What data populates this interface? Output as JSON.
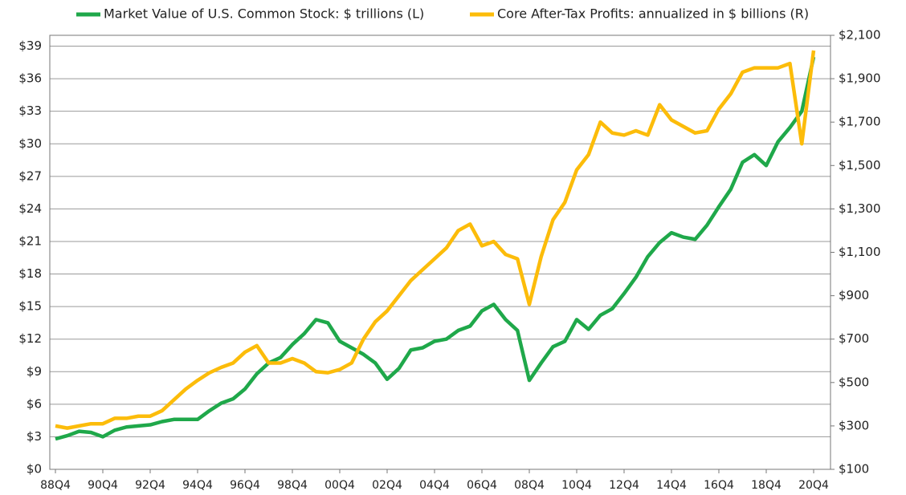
{
  "chart_data": {
    "type": "line",
    "categories": [
      "88Q4",
      null,
      null,
      null,
      "90Q4",
      null,
      null,
      null,
      "92Q4",
      null,
      null,
      null,
      "94Q4",
      null,
      null,
      null,
      "96Q4",
      null,
      null,
      null,
      "98Q4",
      null,
      null,
      null,
      "00Q4",
      null,
      null,
      null,
      "02Q4",
      null,
      null,
      null,
      "04Q4",
      null,
      null,
      null,
      "06Q4",
      null,
      null,
      null,
      "08Q4",
      null,
      null,
      null,
      "10Q4",
      null,
      null,
      null,
      "12Q4",
      null,
      null,
      null,
      "14Q4",
      null,
      null,
      null,
      "16Q4",
      null,
      null,
      null,
      "18Q4",
      null,
      null,
      null,
      "20Q4"
    ],
    "series": [
      {
        "name": "Market Value of U.S. Common Stock: $ trillions (L)",
        "color": "#1fa84a",
        "values": [
          2.8,
          3.1,
          3.5,
          3.4,
          3.0,
          3.6,
          3.9,
          4.0,
          4.1,
          4.4,
          4.6,
          4.6,
          4.6,
          5.4,
          6.1,
          6.5,
          7.4,
          8.8,
          9.8,
          10.3,
          11.5,
          12.5,
          13.8,
          13.5,
          11.8,
          11.2,
          10.6,
          9.8,
          8.3,
          9.3,
          11.0,
          11.2,
          11.8,
          12.0,
          12.8,
          13.2,
          14.6,
          15.2,
          13.8,
          12.8,
          8.2,
          9.8,
          11.3,
          11.8,
          13.8,
          12.9,
          14.2,
          14.8,
          16.2,
          17.7,
          19.6,
          20.9,
          21.8,
          21.4,
          21.2,
          22.5,
          24.2,
          25.8,
          28.3,
          29.0,
          28.0,
          30.2,
          31.5,
          33.0,
          38.0
        ]
      },
      {
        "name": "Core After-Tax Profits: annualized in $ billions (R)",
        "color": "#fcbc0a",
        "axis": "y2",
        "values": [
          300,
          290,
          300,
          310,
          310,
          335,
          335,
          345,
          345,
          370,
          420,
          470,
          510,
          545,
          570,
          590,
          640,
          670,
          590,
          590,
          610,
          590,
          550,
          545,
          560,
          590,
          700,
          780,
          830,
          900,
          970,
          1020,
          1070,
          1120,
          1200,
          1230,
          1130,
          1150,
          1090,
          1070,
          860,
          1080,
          1250,
          1330,
          1480,
          1550,
          1700,
          1650,
          1640,
          1660,
          1640,
          1780,
          1710,
          1680,
          1650,
          1660,
          1760,
          1830,
          1930,
          1950,
          1950,
          1950,
          1970,
          1600,
          2030
        ]
      }
    ],
    "ylim": [
      0,
      40
    ],
    "yticks": [
      {
        "value": 0,
        "label": "$0"
      },
      {
        "value": 3,
        "label": "$3"
      },
      {
        "value": 6,
        "label": "$6"
      },
      {
        "value": 9,
        "label": "$9"
      },
      {
        "value": 12,
        "label": "$12"
      },
      {
        "value": 15,
        "label": "$15"
      },
      {
        "value": 18,
        "label": "$18"
      },
      {
        "value": 21,
        "label": "$21"
      },
      {
        "value": 24,
        "label": "$24"
      },
      {
        "value": 27,
        "label": "$27"
      },
      {
        "value": 30,
        "label": "$30"
      },
      {
        "value": 33,
        "label": "$33"
      },
      {
        "value": 36,
        "label": "$36"
      },
      {
        "value": 39,
        "label": "$39"
      }
    ],
    "y2lim": [
      100,
      2100
    ],
    "y2ticks": [
      {
        "value": 100,
        "label": "$100"
      },
      {
        "value": 300,
        "label": "$300"
      },
      {
        "value": 500,
        "label": "$500"
      },
      {
        "value": 700,
        "label": "$700"
      },
      {
        "value": 900,
        "label": "$900"
      },
      {
        "value": 1100,
        "label": "$1,100"
      },
      {
        "value": 1300,
        "label": "$1,300"
      },
      {
        "value": 1500,
        "label": "$1,500"
      },
      {
        "value": 1700,
        "label": "$1,700"
      },
      {
        "value": 1900,
        "label": "$1,900"
      },
      {
        "value": 2100,
        "label": "$2,100"
      }
    ],
    "grid": true
  }
}
